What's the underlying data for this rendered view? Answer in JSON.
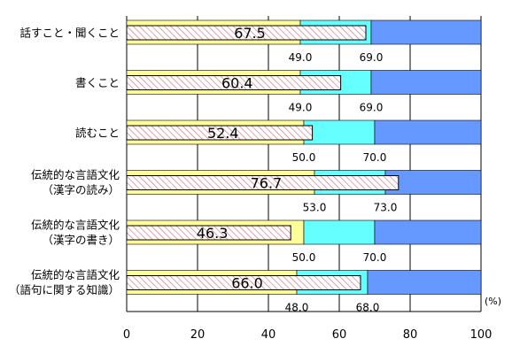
{
  "chart_data": {
    "type": "bar",
    "orientation": "horizontal",
    "unit": "(%)",
    "xlim": [
      0,
      100
    ],
    "x_ticks": [
      0,
      20,
      40,
      60,
      80,
      100
    ],
    "grid": true,
    "categories": [
      [
        "話すこと・聞くこと"
      ],
      [
        "書くこと"
      ],
      [
        "読むこと"
      ],
      [
        "伝統的な言語文化",
        "（漢字の読み）"
      ],
      [
        "伝統的な言語文化",
        "（漢字の書き）"
      ],
      [
        "伝統的な言語文化",
        "（語句に関する知識）"
      ]
    ],
    "values": [
      67.5,
      60.4,
      52.4,
      76.7,
      46.3,
      66.0
    ],
    "value_labels": [
      "67.5",
      "60.4",
      "52.4",
      "76.7",
      "46.3",
      "66.0"
    ],
    "threshold_low": [
      49.0,
      49.0,
      50.0,
      53.0,
      50.0,
      48.0
    ],
    "threshold_low_labels": [
      "49.0",
      "49.0",
      "50.0",
      "53.0",
      "50.0",
      "48.0"
    ],
    "threshold_high": [
      69.0,
      69.0,
      70.0,
      73.0,
      70.0,
      68.0
    ],
    "threshold_high_labels": [
      "69.0",
      "69.0",
      "70.0",
      "73.0",
      "70.0",
      "68.0"
    ],
    "colors": {
      "band_low": "#ffff99",
      "band_mid": "#66ffff",
      "band_high": "#6699ff",
      "value_bar_fill": "#ffffff",
      "value_bar_hatch": "#cc6677",
      "gridline": "#000000"
    }
  }
}
